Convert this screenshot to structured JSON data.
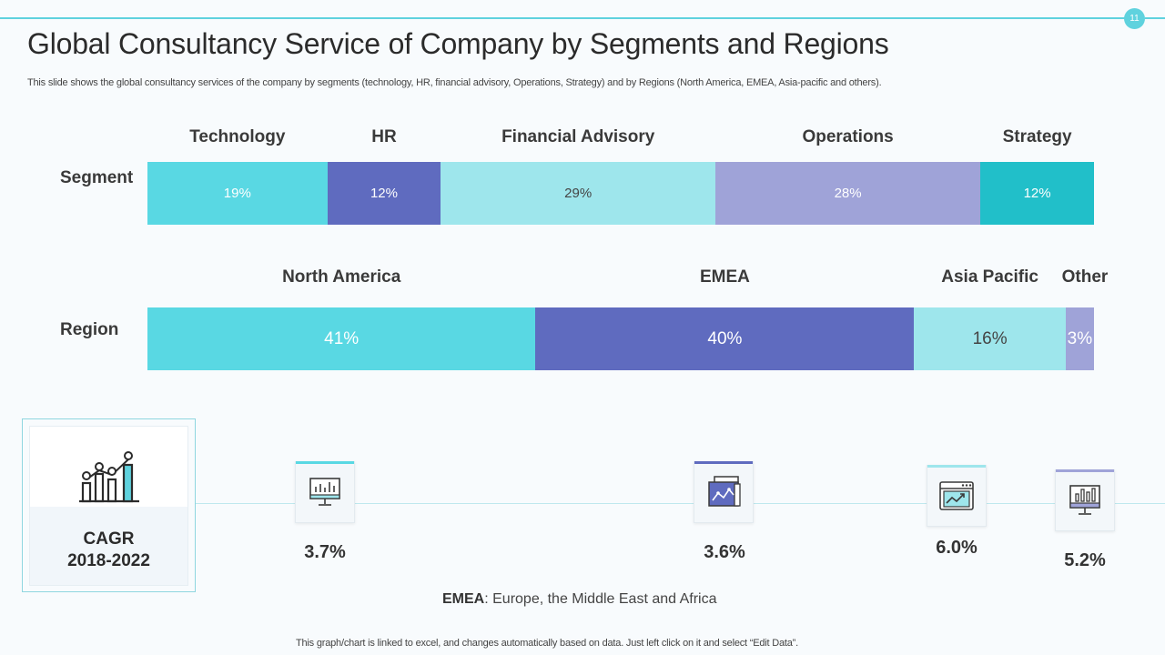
{
  "page": {
    "number": "11"
  },
  "header": {
    "title": "Global Consultancy Service of Company by Segments and Regions",
    "subtitle": "This slide shows the global consultancy services of the company by segments (technology, HR, financial advisory, Operations, Strategy) and by Regions (North America, EMEA,  Asia-pacific and others)."
  },
  "chart_data": [
    {
      "type": "bar",
      "orientation": "horizontal-stacked-100",
      "row_label": "Segment",
      "categories": [
        "Technology",
        "HR",
        "Financial Advisory",
        "Operations",
        "Strategy"
      ],
      "values": [
        19,
        12,
        29,
        28,
        12
      ],
      "value_labels": [
        "19%",
        "12%",
        "29%",
        "28%",
        "12%"
      ],
      "colors": [
        "#59d8e3",
        "#5f6bbf",
        "#9ee6ec",
        "#9fa3d8",
        "#21bfc9"
      ],
      "text_colors": [
        "#ffffff",
        "#ffffff",
        "#444444",
        "#ffffff",
        "#ffffff"
      ]
    },
    {
      "type": "bar",
      "orientation": "horizontal-stacked-100",
      "row_label": "Region",
      "categories": [
        "North America",
        "EMEA",
        "Asia Pacific",
        "Other"
      ],
      "values": [
        41,
        40,
        16,
        3
      ],
      "value_labels": [
        "41%",
        "40%",
        "16%",
        "3%"
      ],
      "colors": [
        "#59d8e3",
        "#5f6bbf",
        "#9ee6ec",
        "#9fa3d8"
      ],
      "text_colors": [
        "#ffffff",
        "#ffffff",
        "#444444",
        "#ffffff"
      ],
      "cagr": {
        "label_line1": "CAGR",
        "label_line2": "2018-2022",
        "values": [
          "3.7%",
          "3.6%",
          "6.0%",
          "5.2%"
        ],
        "icons": [
          "monitor-chart-icon",
          "report-chart-icon",
          "browser-growth-icon",
          "monitor-bars-icon"
        ],
        "accent_colors": [
          "#59d8e3",
          "#5f6bbf",
          "#9ee6ec",
          "#9fa3d8"
        ]
      }
    }
  ],
  "note": {
    "term": "EMEA",
    "definition": ": Europe, the Middle East and Africa"
  },
  "footer": {
    "text": "This graph/chart is linked to excel,  and changes automatically based on data. Just left click on it and select “Edit Data”."
  }
}
